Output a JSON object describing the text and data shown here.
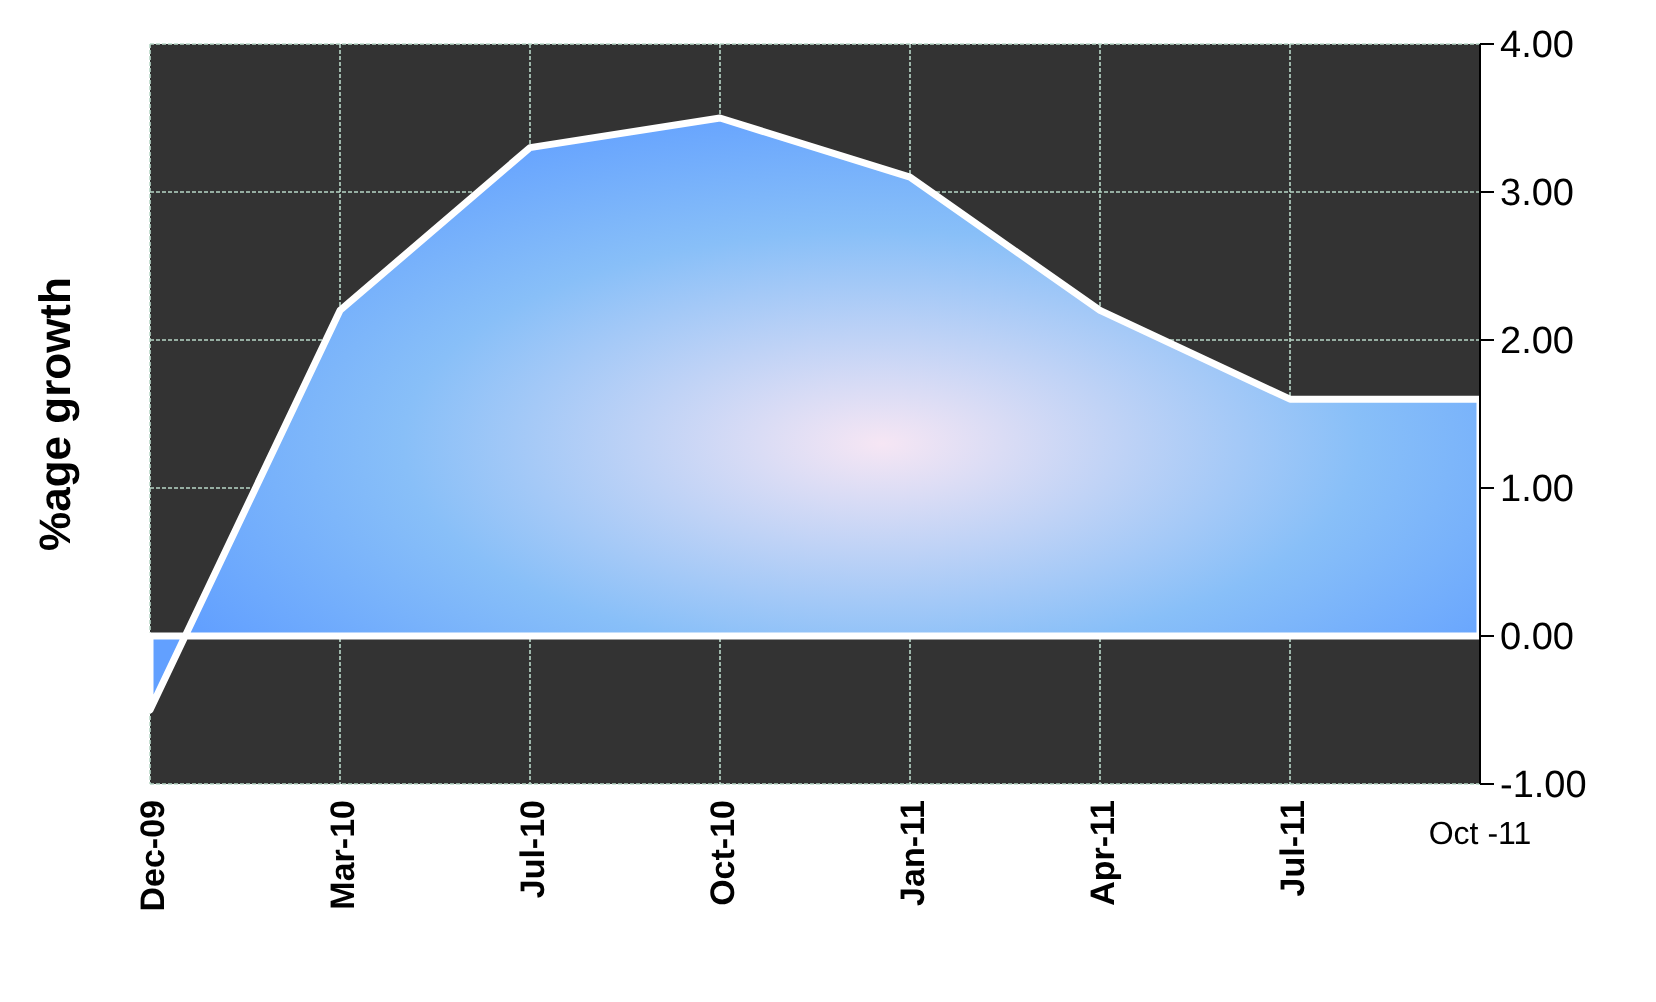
{
  "chart_data": {
    "type": "area",
    "ylabel": "%age growth",
    "categories": [
      "Dec-09",
      "Mar-10",
      "Jul-10",
      "Oct-10",
      "Jan-11",
      "Apr-11",
      "Jul-11",
      "Oct -11"
    ],
    "series": [
      {
        "color": "#62a0ff",
        "values": [
          -0.5,
          2.2,
          3.3,
          3.5,
          3.1,
          2.2,
          1.6,
          1.6
        ]
      }
    ],
    "ylim": [
      -1,
      4
    ],
    "yticks": [
      {
        "value": -1,
        "label": "-1.00"
      },
      {
        "value": 0,
        "label": "0.00"
      },
      {
        "value": 1,
        "label": "1.00"
      },
      {
        "value": 2,
        "label": "2.00"
      },
      {
        "value": 3,
        "label": "3.00"
      },
      {
        "value": 4,
        "label": "4.00"
      }
    ],
    "grid": true
  }
}
